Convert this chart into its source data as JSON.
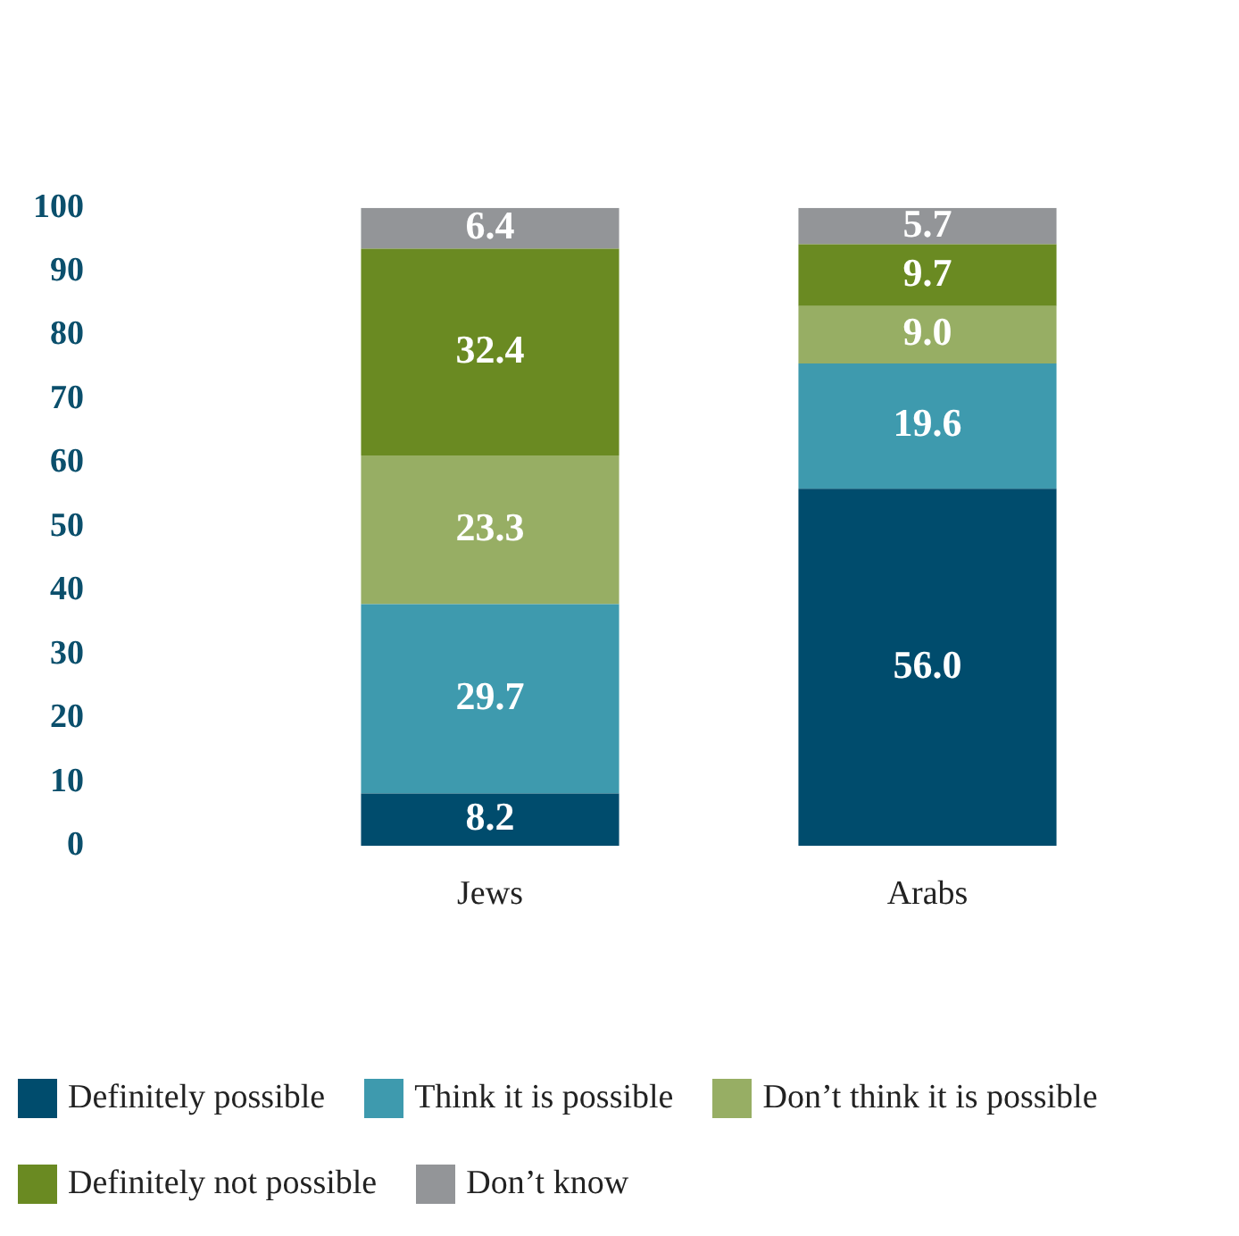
{
  "chart_data": {
    "type": "bar",
    "stacked": true,
    "categories": [
      "Jews",
      "Arabs"
    ],
    "series": [
      {
        "name": "Definitely possible",
        "color": "#004c6d",
        "values": [
          8.2,
          56.0
        ],
        "value_labels": [
          "8.2",
          "56.0"
        ]
      },
      {
        "name": "Think it is possible",
        "color": "#3e9aae",
        "values": [
          29.7,
          19.6
        ],
        "value_labels": [
          "29.7",
          "19.6"
        ]
      },
      {
        "name": "Don’t think it is possible",
        "color": "#97ae64",
        "values": [
          23.3,
          9.0
        ],
        "value_labels": [
          "23.3",
          "9.0"
        ]
      },
      {
        "name": "Definitely not possible",
        "color": "#6a8a22",
        "values": [
          32.4,
          9.7
        ],
        "value_labels": [
          "32.4",
          "9.7"
        ]
      },
      {
        "name": "Don’t know",
        "color": "#939598",
        "values": [
          6.4,
          5.7
        ],
        "value_labels": [
          "6.4",
          "5.7"
        ]
      }
    ],
    "ylim": [
      0,
      100
    ],
    "yticks": [
      0,
      10,
      20,
      30,
      40,
      50,
      60,
      70,
      80,
      90,
      100
    ],
    "grid": false,
    "legend": "bottom"
  }
}
